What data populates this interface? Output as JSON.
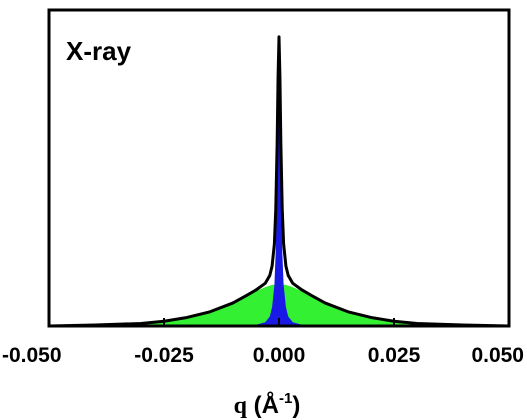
{
  "chart_data": {
    "type": "area",
    "annotation": "X-ray",
    "xlabel": {
      "symbol": "q",
      "unit_open": " (Å",
      "unit_exp": "-1",
      "unit_close": ")"
    },
    "xlim": [
      -0.05,
      0.05
    ],
    "ylim": [
      0,
      1
    ],
    "x_ticks": [
      -0.05,
      -0.025,
      0.0,
      0.025,
      0.05
    ],
    "x_tick_labels": [
      "-0.050",
      "-0.025",
      "0.000",
      "0.025",
      "0.050"
    ],
    "y_ticks_labeled": false,
    "grid": false,
    "colors": {
      "total_line": "#000000",
      "narrow_fill": "#1a1ae6",
      "broad_fill": "#33f033"
    },
    "series": [
      {
        "role": "broad-component",
        "fill": "#33f033",
        "x": [
          -0.05,
          -0.04,
          -0.03,
          -0.025,
          -0.02,
          -0.015,
          -0.01,
          -0.007,
          -0.005,
          -0.003,
          -0.0015,
          0.0,
          0.0015,
          0.003,
          0.005,
          0.007,
          0.01,
          0.015,
          0.02,
          0.025,
          0.03,
          0.04,
          0.05
        ],
        "y": [
          0.0,
          0.003,
          0.008,
          0.015,
          0.027,
          0.045,
          0.073,
          0.095,
          0.11,
          0.123,
          0.13,
          0.133,
          0.13,
          0.123,
          0.11,
          0.095,
          0.073,
          0.045,
          0.027,
          0.015,
          0.008,
          0.003,
          0.0
        ]
      },
      {
        "role": "narrow-component",
        "fill": "#1a1ae6",
        "x": [
          -0.01,
          -0.005,
          -0.003,
          -0.002,
          -0.0015,
          -0.001,
          -0.0007,
          -0.0004,
          -0.0002,
          0.0,
          0.0002,
          0.0004,
          0.0007,
          0.001,
          0.0015,
          0.002,
          0.003,
          0.005,
          0.01
        ],
        "y": [
          0.0,
          0.004,
          0.012,
          0.03,
          0.06,
          0.13,
          0.24,
          0.45,
          0.66,
          0.78,
          0.66,
          0.45,
          0.24,
          0.13,
          0.06,
          0.03,
          0.012,
          0.004,
          0.0
        ]
      },
      {
        "role": "total",
        "stroke": "#000000",
        "x": [
          -0.05,
          -0.04,
          -0.03,
          -0.025,
          -0.02,
          -0.015,
          -0.01,
          -0.007,
          -0.005,
          -0.003,
          -0.002,
          -0.0015,
          -0.001,
          -0.0007,
          -0.0004,
          -0.0002,
          0.0,
          0.0002,
          0.0004,
          0.0007,
          0.001,
          0.0015,
          0.002,
          0.003,
          0.005,
          0.007,
          0.01,
          0.015,
          0.02,
          0.025,
          0.03,
          0.04,
          0.05
        ],
        "y": [
          0.0,
          0.003,
          0.008,
          0.015,
          0.027,
          0.045,
          0.073,
          0.097,
          0.114,
          0.135,
          0.16,
          0.19,
          0.26,
          0.37,
          0.58,
          0.79,
          0.915,
          0.79,
          0.58,
          0.37,
          0.26,
          0.19,
          0.16,
          0.135,
          0.114,
          0.097,
          0.073,
          0.045,
          0.027,
          0.015,
          0.008,
          0.003,
          0.0
        ]
      }
    ]
  }
}
